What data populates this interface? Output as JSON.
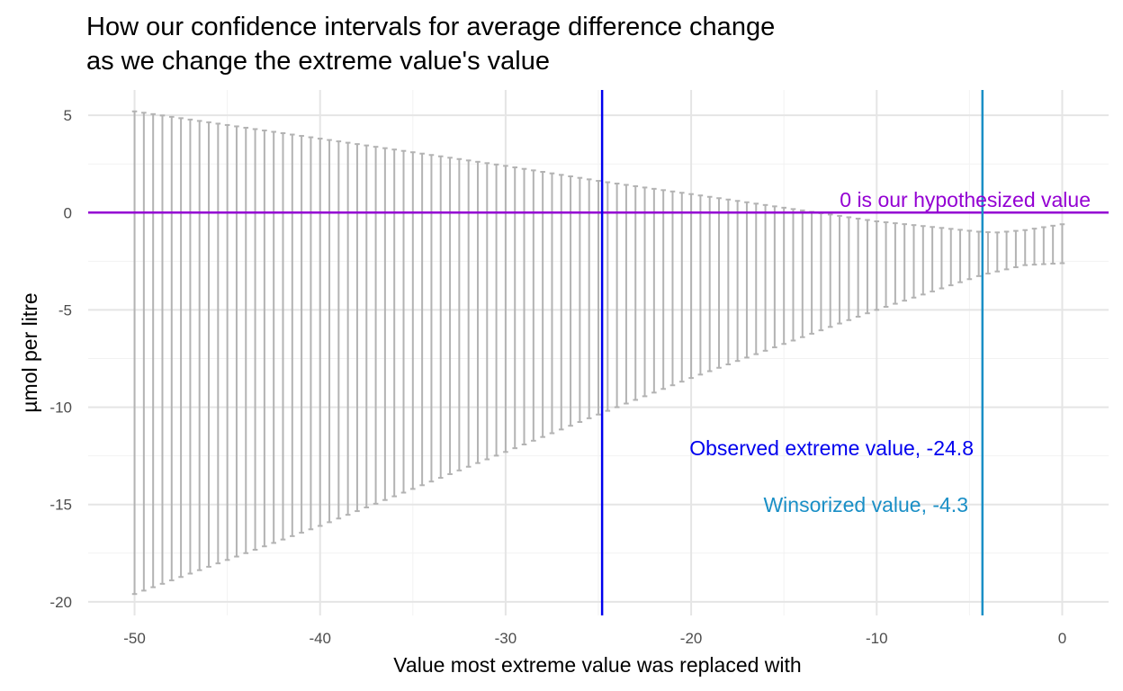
{
  "chart_data": {
    "type": "errorbar",
    "title_lines": [
      "How our confidence intervals for average difference change",
      "as we change the extreme value's value"
    ],
    "xlabel": "Value most extreme value was replaced with",
    "ylabel": "µmol per litre",
    "xlim": [
      -52.5,
      2.5
    ],
    "ylim": [
      -20.7,
      6.3
    ],
    "x_ticks": [
      -50,
      -40,
      -30,
      -20,
      -10,
      0
    ],
    "x_tick_labels": [
      "-50",
      "-40",
      "-30",
      "-20",
      "-10",
      "0"
    ],
    "y_ticks": [
      -20,
      -15,
      -10,
      -5,
      0,
      5
    ],
    "y_tick_labels": [
      "-20",
      "-15",
      "-10",
      "-5",
      "0",
      "5"
    ],
    "grid": true,
    "series": {
      "x_start": -50,
      "x_end": 0,
      "x_step": 0.5,
      "upper_anchor_points": [
        {
          "x": -50,
          "y": 5.2
        },
        {
          "x": -40,
          "y": 3.8
        },
        {
          "x": -30,
          "y": 2.4
        },
        {
          "x": -24.8,
          "y": 1.6
        },
        {
          "x": -20,
          "y": 0.95
        },
        {
          "x": -10,
          "y": -0.45
        },
        {
          "x": -4.3,
          "y": -1.0
        },
        {
          "x": -3.5,
          "y": -1.02
        },
        {
          "x": -2,
          "y": -0.9
        },
        {
          "x": 0,
          "y": -0.6
        }
      ],
      "lower_anchor_points": [
        {
          "x": -50,
          "y": -19.6
        },
        {
          "x": -40,
          "y": -16.1
        },
        {
          "x": -30,
          "y": -12.3
        },
        {
          "x": -24.8,
          "y": -10.3
        },
        {
          "x": -20,
          "y": -8.5
        },
        {
          "x": -10,
          "y": -5.0
        },
        {
          "x": -4.3,
          "y": -3.2
        },
        {
          "x": -2,
          "y": -2.7
        },
        {
          "x": 0,
          "y": -2.6
        }
      ],
      "color": "#b3b3b3"
    },
    "reference_lines": [
      {
        "orientation": "horizontal",
        "value": 0,
        "color": "#9400d3",
        "label": "0 is our hypothesized value"
      },
      {
        "orientation": "vertical",
        "value": -24.8,
        "color": "#0000ee",
        "label": "Observed extreme value, -24.8"
      },
      {
        "orientation": "vertical",
        "value": -4.3,
        "color": "#1a8fc6",
        "label": "Winsorized value, -4.3"
      }
    ]
  }
}
